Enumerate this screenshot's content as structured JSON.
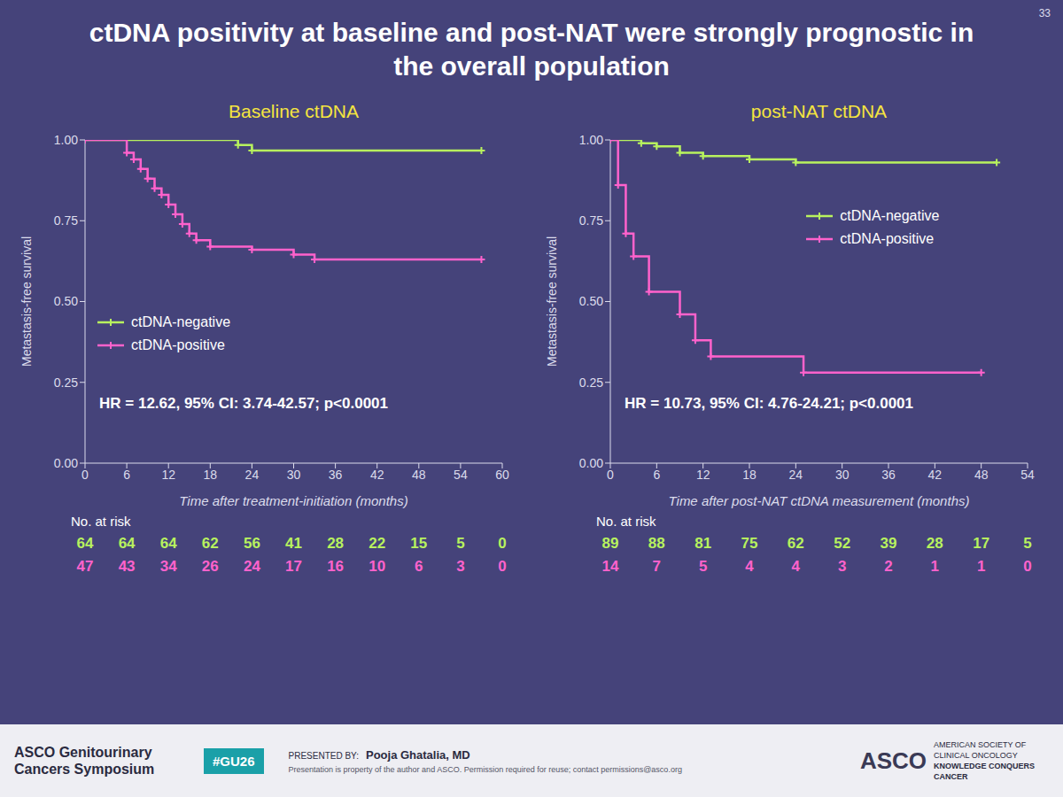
{
  "slide": {
    "title": "ctDNA positivity at baseline and post-NAT were strongly prognostic in the overall population",
    "page": "33",
    "footer": {
      "symposium": "ASCO Genitourinary Cancers Symposium",
      "hashtag": "#GU26",
      "presented_by_label": "PRESENTED BY:",
      "presenter": "Pooja Ghatalia, MD",
      "notice": "Presentation is property of the author and ASCO. Permission required for reuse; contact permissions@asco.org",
      "logo": "ASCO",
      "logo_line1": "AMERICAN SOCIETY OF CLINICAL ONCOLOGY",
      "logo_line2": "KNOWLEDGE CONQUERS CANCER"
    }
  },
  "chart_data": [
    {
      "type": "line",
      "title": "Baseline ctDNA",
      "x_label": "Time after treatment-initiation (months)",
      "y_label": "Metastasis-free survival",
      "xlim": [
        0,
        60
      ],
      "xticks": [
        0,
        6,
        12,
        18,
        24,
        30,
        36,
        42,
        48,
        54,
        60
      ],
      "ylim": [
        0,
        1
      ],
      "yticks": [
        {
          "value": 0,
          "label": "0.00"
        },
        {
          "value": 0.25,
          "label": "0.25"
        },
        {
          "value": 0.5,
          "label": "0.50"
        },
        {
          "value": 0.75,
          "label": "0.75"
        },
        {
          "value": 1,
          "label": "1.00"
        }
      ],
      "grid": false,
      "legend": "lower left",
      "line_style": "step",
      "marker": "plus",
      "annotation": "HR = 12.62, 95% CI: 3.74-42.57; p<0.0001",
      "at_risk_label": "No. at risk",
      "series": [
        {
          "name": "ctDNA-negative",
          "color": "#b8f25e",
          "x": [
            0,
            22,
            24,
            57
          ],
          "values": [
            1,
            0.984,
            0.967,
            0.967
          ],
          "at_risk": [
            64,
            64,
            64,
            62,
            56,
            41,
            28,
            22,
            15,
            5,
            0
          ]
        },
        {
          "name": "ctDNA-positive",
          "color": "#ff62cc",
          "x": [
            0,
            6,
            7,
            8,
            9,
            10,
            11,
            12,
            13,
            14,
            15,
            16,
            18,
            24,
            30,
            33,
            57
          ],
          "values": [
            1,
            0.96,
            0.94,
            0.91,
            0.88,
            0.85,
            0.83,
            0.8,
            0.77,
            0.74,
            0.71,
            0.69,
            0.67,
            0.66,
            0.645,
            0.63,
            0.63
          ],
          "at_risk": [
            47,
            43,
            34,
            26,
            24,
            17,
            16,
            10,
            6,
            3,
            0
          ]
        }
      ]
    },
    {
      "type": "line",
      "title": "post-NAT ctDNA",
      "x_label": "Time after post-NAT ctDNA measurement (months)",
      "y_label": "Metastasis-free survival",
      "xlim": [
        0,
        54
      ],
      "xticks": [
        0,
        6,
        12,
        18,
        24,
        30,
        36,
        42,
        48,
        54
      ],
      "ylim": [
        0,
        1
      ],
      "yticks": [
        {
          "value": 0,
          "label": "0.00"
        },
        {
          "value": 0.25,
          "label": "0.25"
        },
        {
          "value": 0.5,
          "label": "0.50"
        },
        {
          "value": 0.75,
          "label": "0.75"
        },
        {
          "value": 1,
          "label": "1.00"
        }
      ],
      "grid": false,
      "legend": "center right",
      "line_style": "step",
      "marker": "plus",
      "annotation": "HR = 10.73, 95% CI: 4.76-24.21; p<0.0001",
      "at_risk_label": "No. at risk",
      "series": [
        {
          "name": "ctDNA-negative",
          "color": "#b8f25e",
          "x": [
            0,
            4,
            6,
            9,
            12,
            18,
            24,
            50
          ],
          "values": [
            1,
            0.99,
            0.98,
            0.96,
            0.95,
            0.94,
            0.93,
            0.93
          ],
          "at_risk": [
            89,
            88,
            81,
            75,
            62,
            52,
            39,
            28,
            17,
            5
          ]
        },
        {
          "name": "ctDNA-positive",
          "color": "#ff62cc",
          "x": [
            0,
            1,
            2,
            3,
            5,
            9,
            11,
            13,
            25,
            48
          ],
          "values": [
            1,
            0.86,
            0.71,
            0.64,
            0.53,
            0.46,
            0.38,
            0.33,
            0.28,
            0.28
          ],
          "at_risk": [
            14,
            7,
            5,
            4,
            4,
            3,
            2,
            1,
            1,
            0
          ]
        }
      ]
    }
  ]
}
